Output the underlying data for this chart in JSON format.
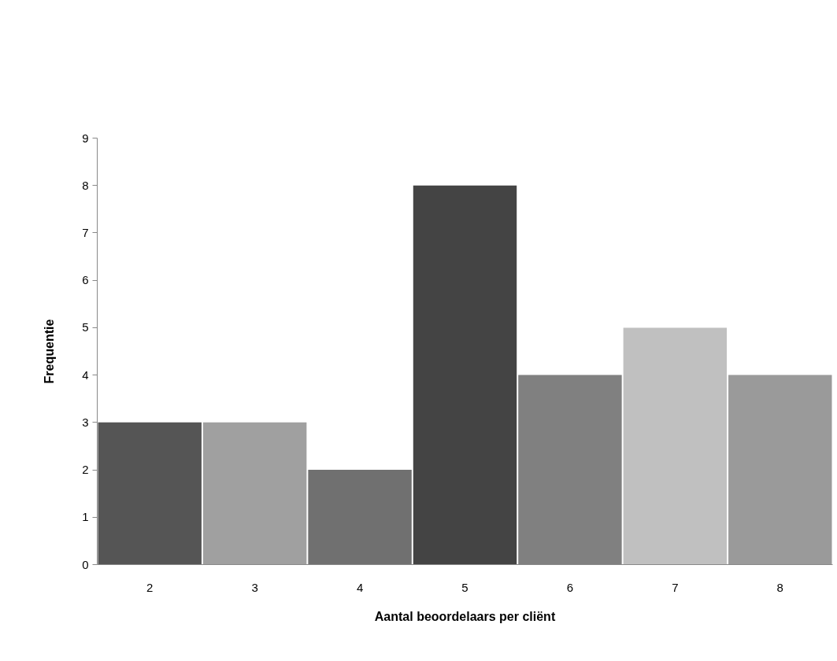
{
  "chart_data": {
    "type": "bar",
    "xlabel": "Aantal beoordelaars per cliënt",
    "ylabel": "Frequentie",
    "categories": [
      "2",
      "3",
      "4",
      "5",
      "6",
      "7",
      "8"
    ],
    "values": [
      3,
      3,
      2,
      8,
      4,
      5,
      4
    ],
    "colors": [
      "#555555",
      "#a0a0a0",
      "#707070",
      "#444444",
      "#808080",
      "#c0c0c0",
      "#9a9a9a"
    ],
    "ylim": [
      0,
      9
    ],
    "yticks": [
      0,
      1,
      2,
      3,
      4,
      5,
      6,
      7,
      8,
      9
    ],
    "grid": false
  }
}
